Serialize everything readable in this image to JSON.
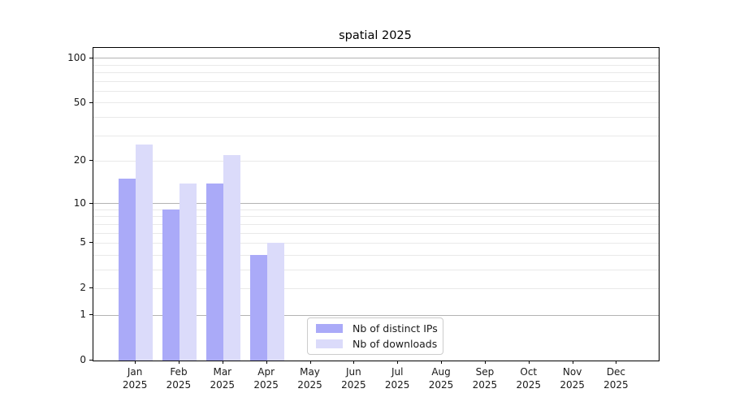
{
  "chart_data": {
    "type": "bar",
    "title": "spatial 2025",
    "categories": [
      "Jan 2025",
      "Feb 2025",
      "Mar 2025",
      "Apr 2025",
      "May 2025",
      "Jun 2025",
      "Jul 2025",
      "Aug 2025",
      "Sep 2025",
      "Oct 2025",
      "Nov 2025",
      "Dec 2025"
    ],
    "x_tick_month": [
      "Jan",
      "Feb",
      "Mar",
      "Apr",
      "May",
      "Jun",
      "Jul",
      "Aug",
      "Sep",
      "Oct",
      "Nov",
      "Dec"
    ],
    "x_tick_year": "2025",
    "series": [
      {
        "name": "Nb of distinct IPs",
        "values": [
          15,
          9,
          14,
          4,
          0,
          0,
          0,
          0,
          0,
          0,
          0,
          0
        ],
        "color": "#aaaaf8"
      },
      {
        "name": "Nb of downloads",
        "values": [
          26,
          14,
          22,
          5,
          0,
          0,
          0,
          0,
          0,
          0,
          0,
          0
        ],
        "color": "#dbdbfa"
      }
    ],
    "y_scale": "log1p",
    "y_ticks": [
      0,
      1,
      2,
      5,
      10,
      20,
      50,
      100
    ],
    "y_major_gridlines": [
      1,
      10,
      100
    ],
    "y_minor_gridlines": [
      2,
      3,
      4,
      5,
      6,
      7,
      8,
      9,
      20,
      30,
      40,
      50,
      60,
      70,
      80,
      90
    ],
    "ylim": [
      0,
      117
    ],
    "grid": true,
    "legend_position": "lower center"
  },
  "colors": {
    "bar_distinct_ips": "#aaaaf8",
    "bar_downloads": "#dbdbfa",
    "grid_major": "#b3b3b3",
    "grid_minor": "#e9e9e9",
    "axis_line": "#000000",
    "text": "#1a1a1a",
    "legend_border": "#cccccc"
  }
}
